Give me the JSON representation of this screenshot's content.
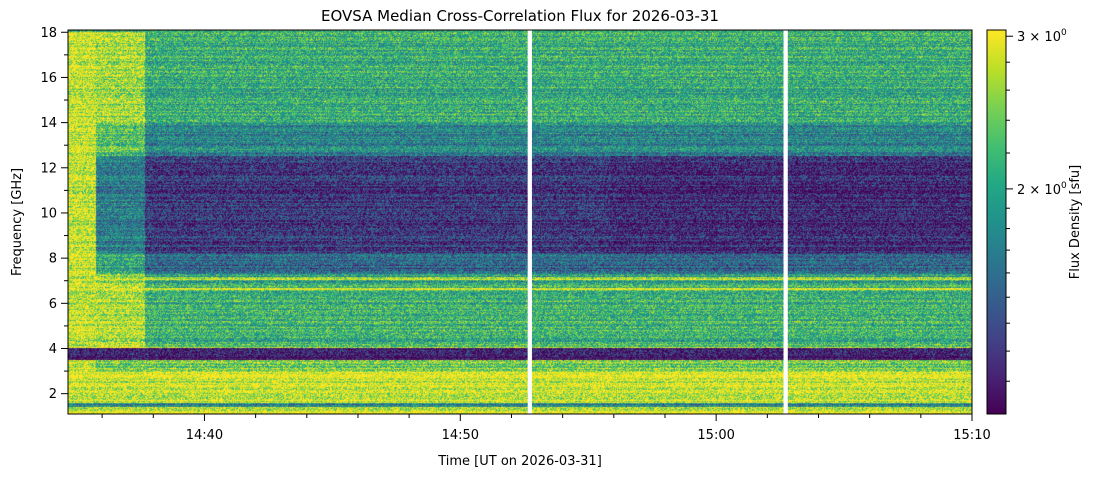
{
  "chart_data": {
    "type": "heatmap",
    "title": "EOVSA Median Cross-Correlation Flux for 2026-03-31",
    "xlabel": "Time [UT on 2026-03-31]",
    "ylabel": "Frequency [GHz]",
    "colorbar_label": "Flux Density [sfu]",
    "colormap": "viridis",
    "xlim": [
      "14:34:40",
      "15:10:00"
    ],
    "ylim": [
      1.1,
      18.1
    ],
    "x_major_ticks": [
      "14:40",
      "14:50",
      "15:00",
      "15:10"
    ],
    "y_ticks": [
      2,
      4,
      6,
      8,
      10,
      12,
      14,
      16,
      18
    ],
    "colorbar_scale": "log",
    "colorbar_range": [
      1.1,
      3.05
    ],
    "colorbar_ticks": [
      {
        "value": 2,
        "label": "2 × 10⁰",
        "mantissa": "2",
        "exponent": "0"
      },
      {
        "value": 3,
        "label": "3 × 10⁰",
        "mantissa": "3",
        "exponent": "0"
      }
    ],
    "data_gaps_utc": [
      [
        "14:52:38",
        "14:52:48"
      ],
      [
        "15:02:38",
        "15:02:48"
      ]
    ],
    "dominant_features": [
      {
        "description": "saturated high flux band",
        "freq_ghz": [
          1.2,
          3.0
        ],
        "level": "high"
      },
      {
        "description": "narrow dark RFI lines",
        "freq_ghz": [
          3.5,
          4.0
        ],
        "level": "low"
      },
      {
        "description": "bright early emission",
        "time_utc": [
          "14:34:40",
          "14:35:50"
        ],
        "level": "high"
      },
      {
        "description": "low flux region",
        "freq_ghz": [
          8.0,
          12.5
        ],
        "level": "low"
      },
      {
        "description": "moderate flux at high frequencies",
        "freq_ghz": [
          14.0,
          18.0
        ],
        "level": "medium"
      }
    ]
  }
}
